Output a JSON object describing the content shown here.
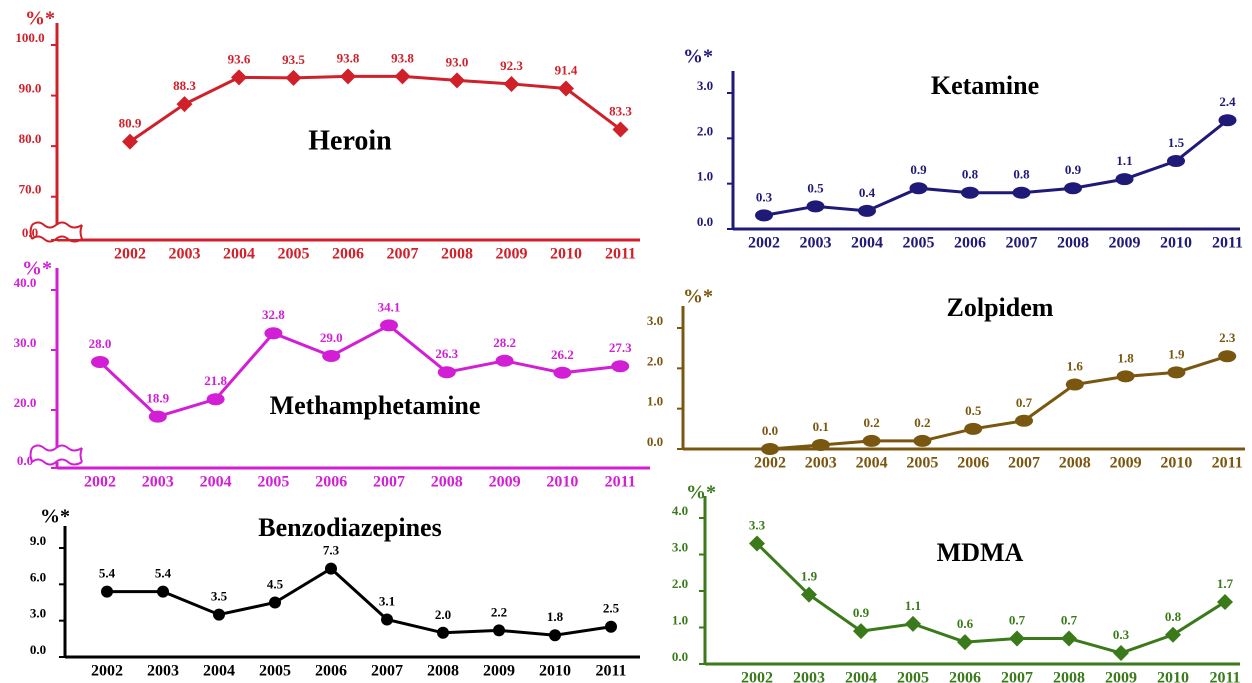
{
  "chart_data": [
    {
      "type": "line",
      "title": "Heroin",
      "y_label": "%*",
      "color": "#d0202a",
      "marker": "diamond",
      "categories": [
        "2002",
        "2003",
        "2004",
        "2005",
        "2006",
        "2007",
        "2008",
        "2009",
        "2010",
        "2011"
      ],
      "values": [
        80.9,
        88.3,
        93.6,
        93.5,
        93.8,
        93.8,
        93.0,
        92.3,
        91.4,
        83.3
      ],
      "value_labels": [
        "80.9",
        "88.3",
        "93.6",
        "93.5",
        "93.8",
        "93.8",
        "93.0",
        "92.3",
        "91.4",
        "83.3"
      ],
      "ylim": [
        0,
        100
      ],
      "axis_break": [
        0,
        65
      ],
      "yticks": [
        {
          "value": 0,
          "label": "0.0"
        },
        {
          "value": 70,
          "label": "70.0"
        },
        {
          "value": 80,
          "label": "80.0"
        },
        {
          "value": 90,
          "label": "90.0"
        },
        {
          "value": 100,
          "label": "100.0"
        }
      ]
    },
    {
      "type": "line",
      "title": "Ketamine",
      "y_label": "%*",
      "color": "#1f1a78",
      "marker": "ellipse",
      "categories": [
        "2002",
        "2003",
        "2004",
        "2005",
        "2006",
        "2007",
        "2008",
        "2009",
        "2010",
        "2011"
      ],
      "values": [
        0.3,
        0.5,
        0.4,
        0.9,
        0.8,
        0.8,
        0.9,
        1.1,
        1.5,
        2.4
      ],
      "value_labels": [
        "0.3",
        "0.5",
        "0.4",
        "0.9",
        "0.8",
        "0.8",
        "0.9",
        "1.1",
        "1.5",
        "2.4"
      ],
      "ylim": [
        0,
        3
      ],
      "yticks": [
        {
          "value": 0,
          "label": "0.0"
        },
        {
          "value": 1,
          "label": "1.0"
        },
        {
          "value": 2,
          "label": "2.0"
        },
        {
          "value": 3,
          "label": "3.0"
        }
      ]
    },
    {
      "type": "line",
      "title": "Methamphetamine",
      "y_label": "%*",
      "color": "#d21fd6",
      "marker": "ellipse",
      "categories": [
        "2002",
        "2003",
        "2004",
        "2005",
        "2006",
        "2007",
        "2008",
        "2009",
        "2010",
        "2011"
      ],
      "values": [
        28.0,
        18.9,
        21.8,
        32.8,
        29.0,
        34.1,
        26.3,
        28.2,
        26.2,
        27.3
      ],
      "value_labels": [
        "28.0",
        "18.9",
        "21.8",
        "32.8",
        "29.0",
        "34.1",
        "26.3",
        "28.2",
        "26.2",
        "27.3"
      ],
      "ylim": [
        0,
        40
      ],
      "axis_break": [
        0,
        15
      ],
      "yticks": [
        {
          "value": 0,
          "label": "0.0"
        },
        {
          "value": 20,
          "label": "20.0"
        },
        {
          "value": 30,
          "label": "30.0"
        },
        {
          "value": 40,
          "label": "40.0"
        }
      ]
    },
    {
      "type": "line",
      "title": "Zolpidem",
      "y_label": "%*",
      "color": "#7a5710",
      "marker": "ellipse",
      "categories": [
        "2002",
        "2003",
        "2004",
        "2005",
        "2006",
        "2007",
        "2008",
        "2009",
        "2010",
        "2011"
      ],
      "values": [
        0.0,
        0.1,
        0.2,
        0.2,
        0.5,
        0.7,
        1.6,
        1.8,
        1.9,
        2.3
      ],
      "value_labels": [
        "0.0",
        "0.1",
        "0.2",
        "0.2",
        "0.5",
        "0.7",
        "1.6",
        "1.8",
        "1.9",
        "2.3"
      ],
      "ylim": [
        0,
        3
      ],
      "yticks": [
        {
          "value": 0,
          "label": "0.0"
        },
        {
          "value": 1,
          "label": "1.0"
        },
        {
          "value": 2,
          "label": "2.0"
        },
        {
          "value": 3,
          "label": "3.0"
        }
      ]
    },
    {
      "type": "line",
      "title": "Benzodiazepines",
      "y_label": "%*",
      "color": "#000000",
      "marker": "circle",
      "categories": [
        "2002",
        "2003",
        "2004",
        "2005",
        "2006",
        "2007",
        "2008",
        "2009",
        "2010",
        "2011"
      ],
      "values": [
        5.4,
        5.4,
        3.5,
        4.5,
        7.3,
        3.1,
        2.0,
        2.2,
        1.8,
        2.5
      ],
      "value_labels": [
        "5.4",
        "5.4",
        "3.5",
        "4.5",
        "7.3",
        "3.1",
        "2.0",
        "2.2",
        "1.8",
        "2.5"
      ],
      "ylim": [
        0,
        9
      ],
      "yticks": [
        {
          "value": 0,
          "label": "0.0"
        },
        {
          "value": 3,
          "label": "3.0"
        },
        {
          "value": 6,
          "label": "6.0"
        },
        {
          "value": 9,
          "label": "9.0"
        }
      ]
    },
    {
      "type": "line",
      "title": "MDMA",
      "y_label": "%*",
      "color": "#3a7a1a",
      "marker": "diamond",
      "categories": [
        "2002",
        "2003",
        "2004",
        "2005",
        "2006",
        "2007",
        "2008",
        "2009",
        "2010",
        "2011"
      ],
      "values": [
        3.3,
        1.9,
        0.9,
        1.1,
        0.6,
        0.7,
        0.7,
        0.3,
        0.8,
        1.7
      ],
      "value_labels": [
        "3.3",
        "1.9",
        "0.9",
        "1.1",
        "0.6",
        "0.7",
        "0.7",
        "0.3",
        "0.8",
        "1.7"
      ],
      "ylim": [
        0,
        4
      ],
      "yticks": [
        {
          "value": 0,
          "label": "0.0"
        },
        {
          "value": 1,
          "label": "1.0"
        },
        {
          "value": 2,
          "label": "2.0"
        },
        {
          "value": 3,
          "label": "3.0"
        },
        {
          "value": 4,
          "label": "4.0"
        }
      ]
    }
  ]
}
